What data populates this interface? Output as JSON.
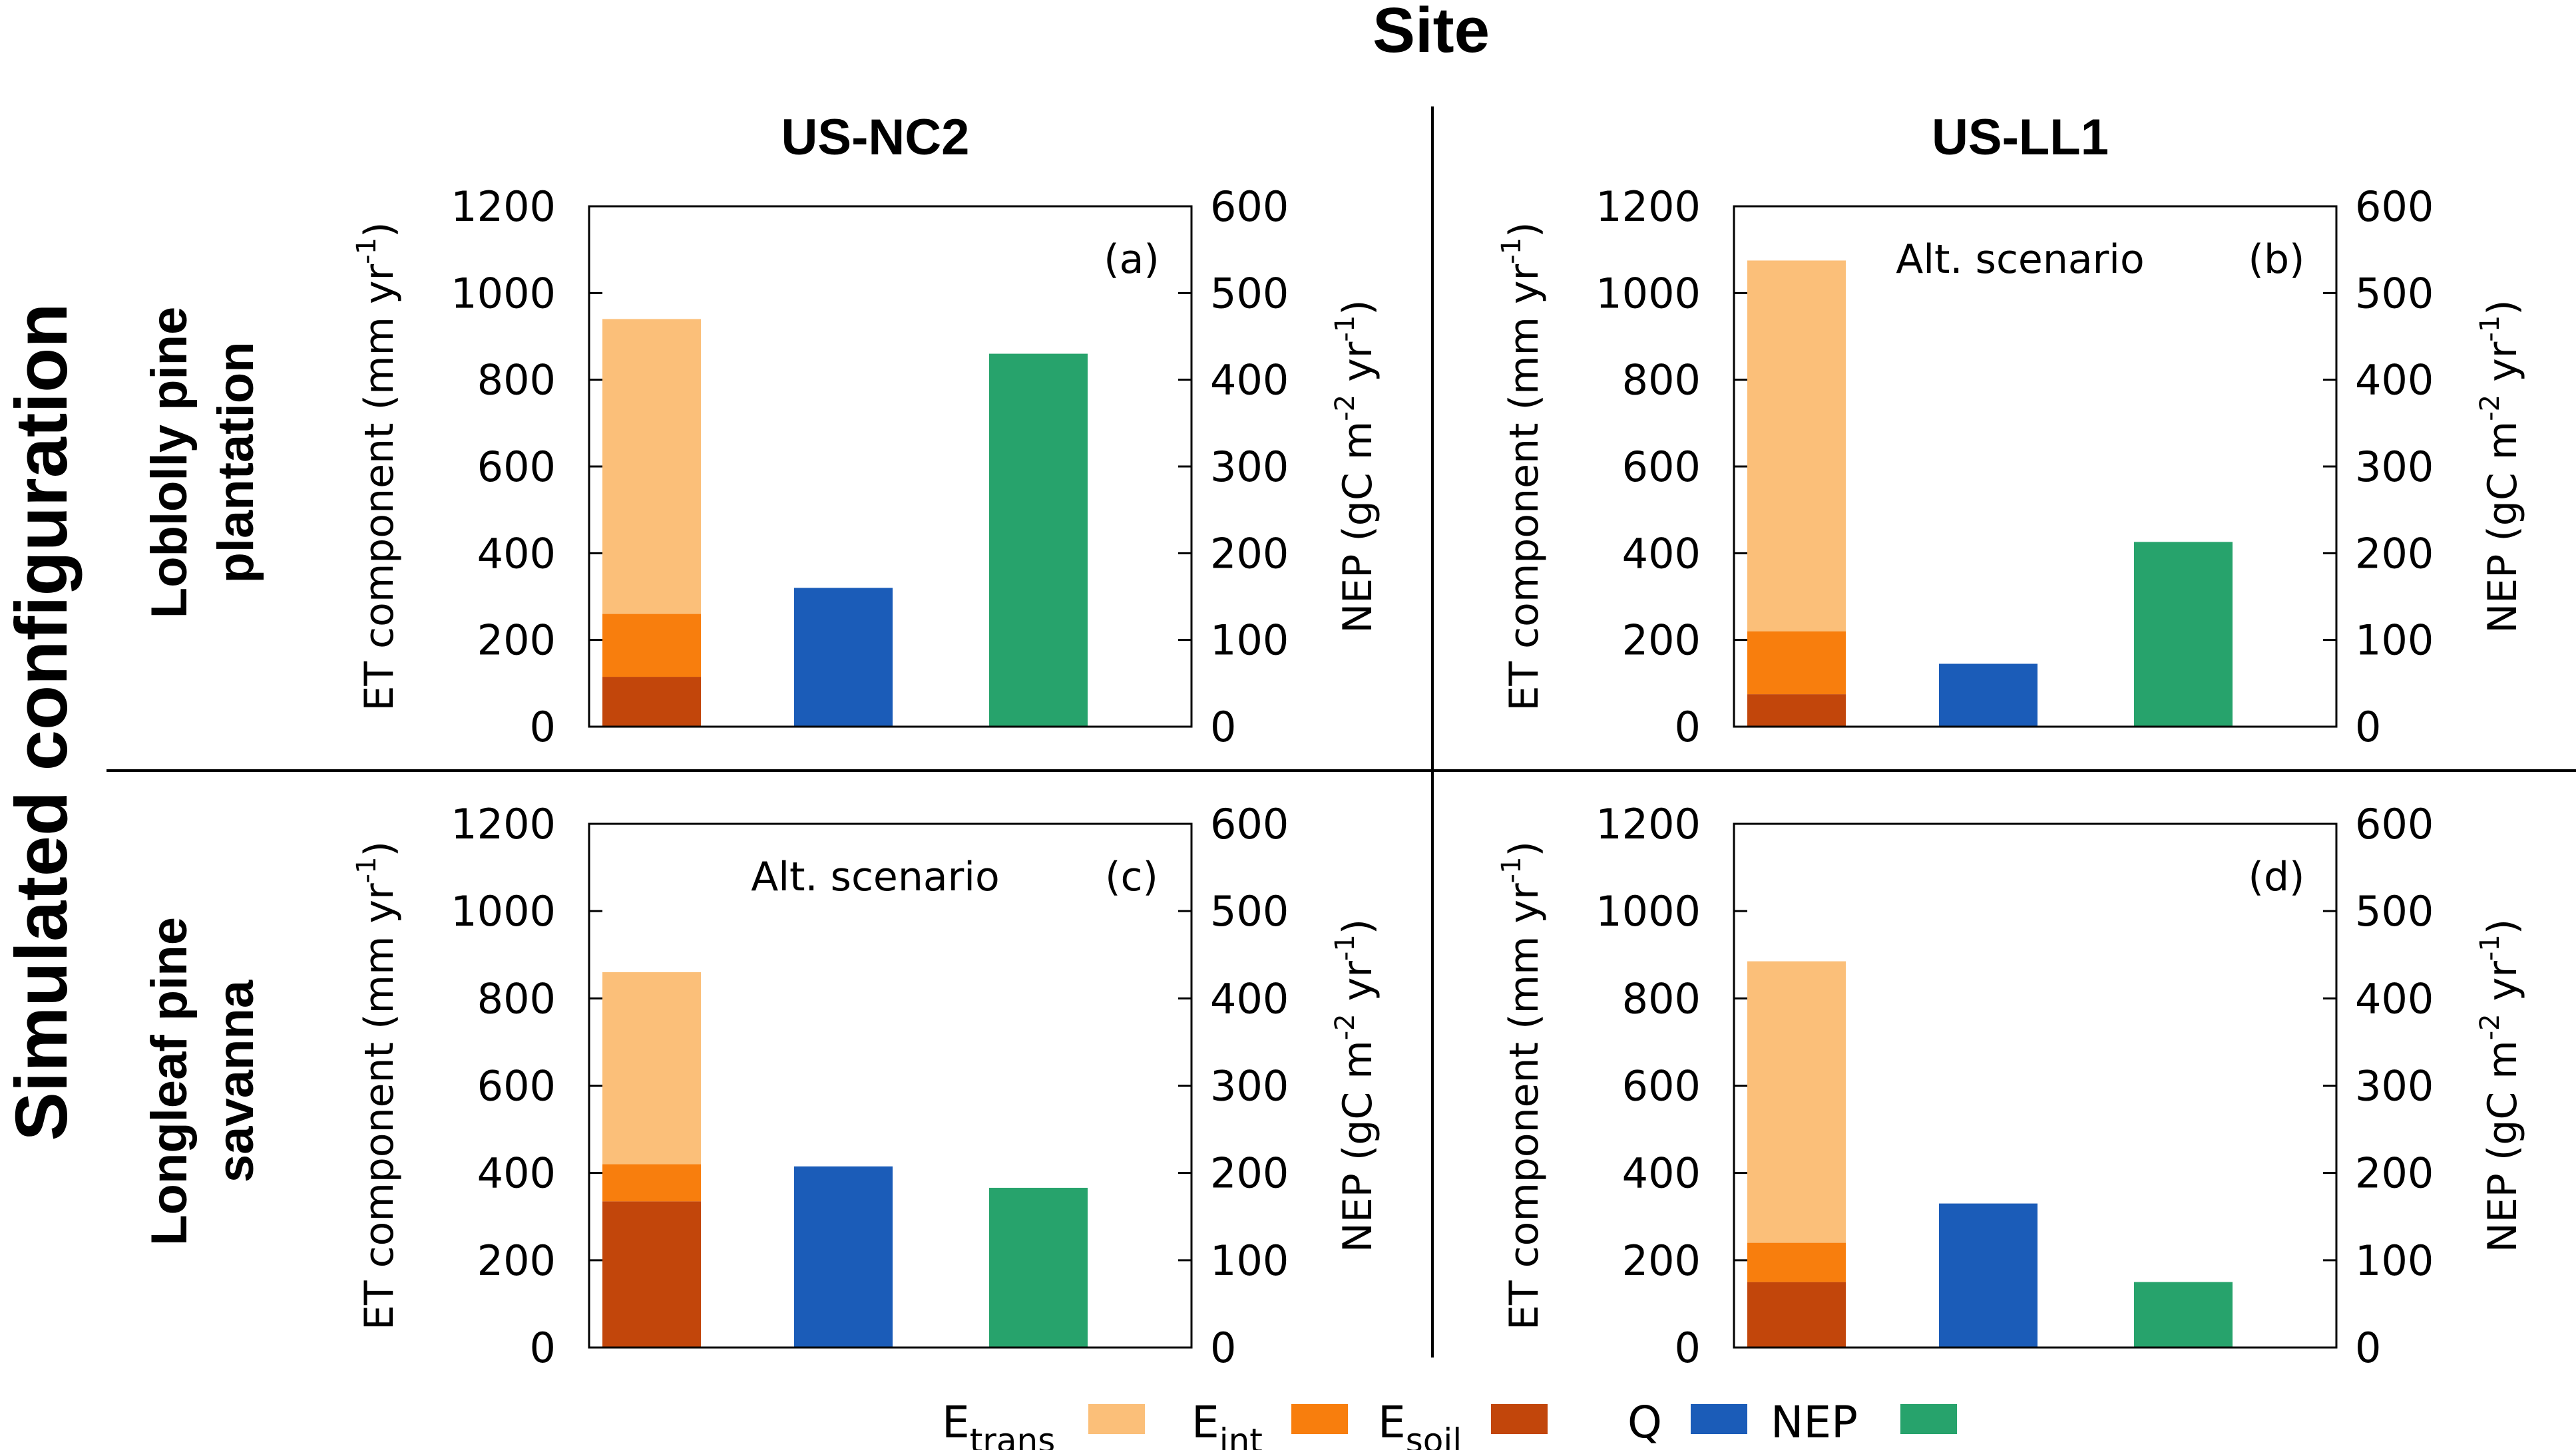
{
  "figure": {
    "site_title": "Site",
    "config_title": "Simulated configuration",
    "columns": [
      "US-NC2",
      "US-LL1"
    ],
    "rows": [
      {
        "line1": "Loblolly pine",
        "line2": "plantation"
      },
      {
        "line1": "Longleaf pine",
        "line2": "savanna"
      }
    ],
    "left_axis_label": "ET component (mm yr",
    "left_axis_sup": "-1",
    "left_axis_close": ")",
    "right_axis_label_a": "NEP (gC m",
    "right_axis_sup1": "-2",
    "right_axis_mid": " yr",
    "right_axis_sup2": "-1",
    "right_axis_close": ")",
    "left_ticks": [
      "0",
      "200",
      "400",
      "600",
      "800",
      "1000",
      "1200"
    ],
    "right_ticks": [
      "0",
      "100",
      "200",
      "300",
      "400",
      "500",
      "600"
    ],
    "colors": {
      "E_trans": "#fbbf79",
      "E_int": "#f87e0d",
      "E_soil": "#c2460b",
      "Q": "#1b5cb8",
      "NEP": "#27a36c"
    }
  },
  "legend": [
    {
      "key": "E_trans",
      "base": "E",
      "sub": "trans"
    },
    {
      "key": "E_int",
      "base": "E",
      "sub": "int"
    },
    {
      "key": "E_soil",
      "base": "E",
      "sub": "soil"
    },
    {
      "key": "Q",
      "base": "Q",
      "sub": ""
    },
    {
      "key": "NEP",
      "base": "NEP",
      "sub": ""
    }
  ],
  "chart_data": [
    {
      "type": "bar",
      "panel": "(a)",
      "site": "US-NC2",
      "configuration": "Loblolly pine plantation",
      "scenario_label": "",
      "ylim_left": [
        0,
        1200
      ],
      "ylim_right": [
        0,
        600
      ],
      "stacked_et": {
        "E_soil": 115,
        "E_int": 145,
        "E_trans": 680
      },
      "Q": 320,
      "NEP": 430
    },
    {
      "type": "bar",
      "panel": "(b)",
      "site": "US-LL1",
      "configuration": "Loblolly pine plantation",
      "scenario_label": "Alt. scenario",
      "ylim_left": [
        0,
        1200
      ],
      "ylim_right": [
        0,
        600
      ],
      "stacked_et": {
        "E_soil": 75,
        "E_int": 145,
        "E_trans": 855
      },
      "Q": 145,
      "NEP": 213
    },
    {
      "type": "bar",
      "panel": "(c)",
      "site": "US-NC2",
      "configuration": "Longleaf pine savanna",
      "scenario_label": "Alt. scenario",
      "ylim_left": [
        0,
        1200
      ],
      "ylim_right": [
        0,
        600
      ],
      "stacked_et": {
        "E_soil": 335,
        "E_int": 85,
        "E_trans": 440
      },
      "Q": 415,
      "NEP": 183
    },
    {
      "type": "bar",
      "panel": "(d)",
      "site": "US-LL1",
      "configuration": "Longleaf pine savanna",
      "scenario_label": "",
      "ylim_left": [
        0,
        1200
      ],
      "ylim_right": [
        0,
        600
      ],
      "stacked_et": {
        "E_soil": 150,
        "E_int": 90,
        "E_trans": 645
      },
      "Q": 330,
      "NEP": 75
    }
  ]
}
